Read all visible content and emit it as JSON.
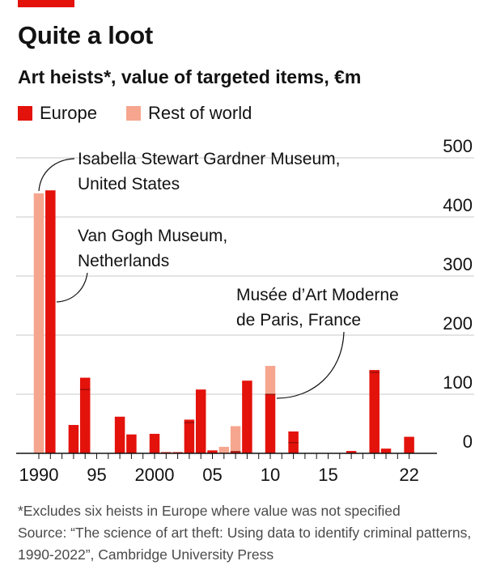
{
  "header": {
    "title": "Quite a loot",
    "subtitle": "Art heists*, value of targeted items, €m"
  },
  "legend": [
    {
      "label": "Europe",
      "color": "#e3120b"
    },
    {
      "label": "Rest of world",
      "color": "#f6a68f"
    }
  ],
  "annotations": [
    {
      "lines": [
        "Isabella Stewart Gardner Museum,",
        "United States"
      ]
    },
    {
      "lines": [
        "Van Gogh Museum,",
        "Netherlands"
      ]
    },
    {
      "lines": [
        "Musée d’Art Moderne",
        "de Paris, France"
      ]
    }
  ],
  "footnote": {
    "note": "*Excludes six heists in Europe where value was not specified",
    "source": "Source: “The science of art theft: Using data to identify criminal patterns, 1990-2022”, Cambridge University Press"
  },
  "chart_data": {
    "type": "bar",
    "title": "Quite a loot",
    "subtitle": "Art heists*, value of targeted items, €m",
    "ylim": [
      0,
      500
    ],
    "yticks": [
      0,
      100,
      200,
      300,
      400,
      500
    ],
    "xtick_labels": [
      {
        "year": 1990,
        "label": "1990"
      },
      {
        "year": 1995,
        "label": "95"
      },
      {
        "year": 2000,
        "label": "2000"
      },
      {
        "year": 2005,
        "label": "05"
      },
      {
        "year": 2010,
        "label": "10"
      },
      {
        "year": 2015,
        "label": "15"
      },
      {
        "year": 2022,
        "label": "22"
      }
    ],
    "grid": true,
    "legend_position": "top-left",
    "series": [
      {
        "name": "Europe",
        "color": "#e3120b"
      },
      {
        "name": "Rest of world",
        "color": "#f6a68f"
      }
    ],
    "bars": [
      {
        "year": 1990,
        "segments": [
          {
            "series": "Rest of world",
            "value": 440
          }
        ]
      },
      {
        "year": 1991,
        "segments": [
          {
            "series": "Europe",
            "value": 445
          }
        ]
      },
      {
        "year": 1993,
        "segments": [
          {
            "series": "Europe",
            "value": 48
          }
        ]
      },
      {
        "year": 1994,
        "segments": [
          {
            "series": "Europe",
            "value": 108
          },
          {
            "series": "Europe",
            "value": 20
          }
        ]
      },
      {
        "year": 1997,
        "segments": [
          {
            "series": "Europe",
            "value": 62
          }
        ]
      },
      {
        "year": 1998,
        "segments": [
          {
            "series": "Europe",
            "value": 32
          }
        ]
      },
      {
        "year": 2000,
        "segments": [
          {
            "series": "Europe",
            "value": 33
          }
        ]
      },
      {
        "year": 2001,
        "segments": [
          {
            "series": "Europe",
            "value": 1
          }
        ]
      },
      {
        "year": 2002,
        "segments": [
          {
            "series": "Europe",
            "value": 1
          }
        ]
      },
      {
        "year": 2003,
        "segments": [
          {
            "series": "Europe",
            "value": 52
          },
          {
            "series": "Europe",
            "value": 5
          }
        ]
      },
      {
        "year": 2004,
        "segments": [
          {
            "series": "Europe",
            "value": 108
          }
        ]
      },
      {
        "year": 2005,
        "segments": [
          {
            "series": "Europe",
            "value": 5
          }
        ]
      },
      {
        "year": 2006,
        "segments": [
          {
            "series": "Rest of world",
            "value": 11
          }
        ]
      },
      {
        "year": 2007,
        "segments": [
          {
            "series": "Europe",
            "value": 3
          },
          {
            "series": "Rest of world",
            "value": 43
          }
        ]
      },
      {
        "year": 2008,
        "segments": [
          {
            "series": "Europe",
            "value": 123
          }
        ]
      },
      {
        "year": 2010,
        "segments": [
          {
            "series": "Europe",
            "value": 100
          },
          {
            "series": "Rest of world",
            "value": 48
          }
        ]
      },
      {
        "year": 2012,
        "segments": [
          {
            "series": "Europe",
            "value": 18
          },
          {
            "series": "Europe",
            "value": 19
          }
        ]
      },
      {
        "year": 2017,
        "segments": [
          {
            "series": "Europe",
            "value": 4
          }
        ]
      },
      {
        "year": 2019,
        "segments": [
          {
            "series": "Europe",
            "value": 137
          },
          {
            "series": "Europe",
            "value": 4
          }
        ]
      },
      {
        "year": 2020,
        "segments": [
          {
            "series": "Europe",
            "value": 8
          }
        ]
      },
      {
        "year": 2022,
        "segments": [
          {
            "series": "Europe",
            "value": 28
          }
        ]
      }
    ]
  }
}
